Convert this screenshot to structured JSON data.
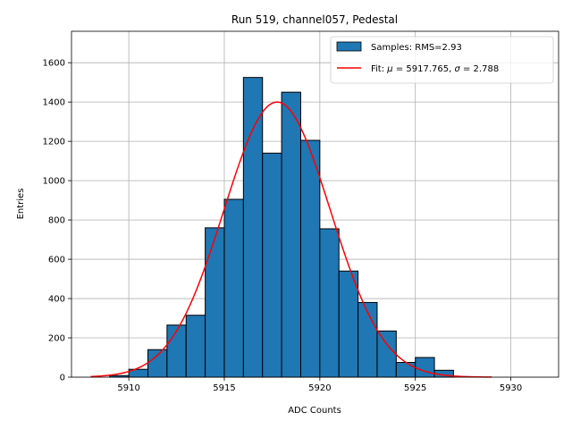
{
  "chart_data": {
    "type": "bar",
    "title": "Run 519, channel057, Pedestal",
    "xlabel": "ADC Counts",
    "ylabel": "Entries",
    "xlim": [
      5907,
      5932.5
    ],
    "ylim": [
      0,
      1760
    ],
    "xticks": [
      5910,
      5915,
      5920,
      5925,
      5930
    ],
    "yticks": [
      0,
      200,
      400,
      600,
      800,
      1000,
      1200,
      1400,
      1600
    ],
    "grid": true,
    "legend_position": "top-right",
    "histogram": {
      "name": "Samples: RMS=2.93",
      "bin_edges": [
        5909,
        5910,
        5911,
        5912,
        5913,
        5914,
        5915,
        5916,
        5917,
        5918,
        5919,
        5920,
        5921,
        5922,
        5923,
        5924,
        5925,
        5926,
        5927,
        5928,
        5929,
        5930,
        5931
      ],
      "counts": [
        8,
        40,
        140,
        265,
        315,
        760,
        905,
        1525,
        1140,
        1450,
        1205,
        755,
        540,
        380,
        235,
        75,
        100,
        35,
        0,
        0,
        0,
        0
      ],
      "color": "#1f77b4"
    },
    "fit": {
      "name_prefix": "Fit: ",
      "name_mu_value": " = 5917.765, ",
      "name_sigma_value": " = 2.788",
      "mu": 5917.765,
      "sigma": 2.788,
      "amplitude": 1400,
      "x_range": [
        5908,
        5929
      ],
      "color": "#ff0000"
    }
  }
}
